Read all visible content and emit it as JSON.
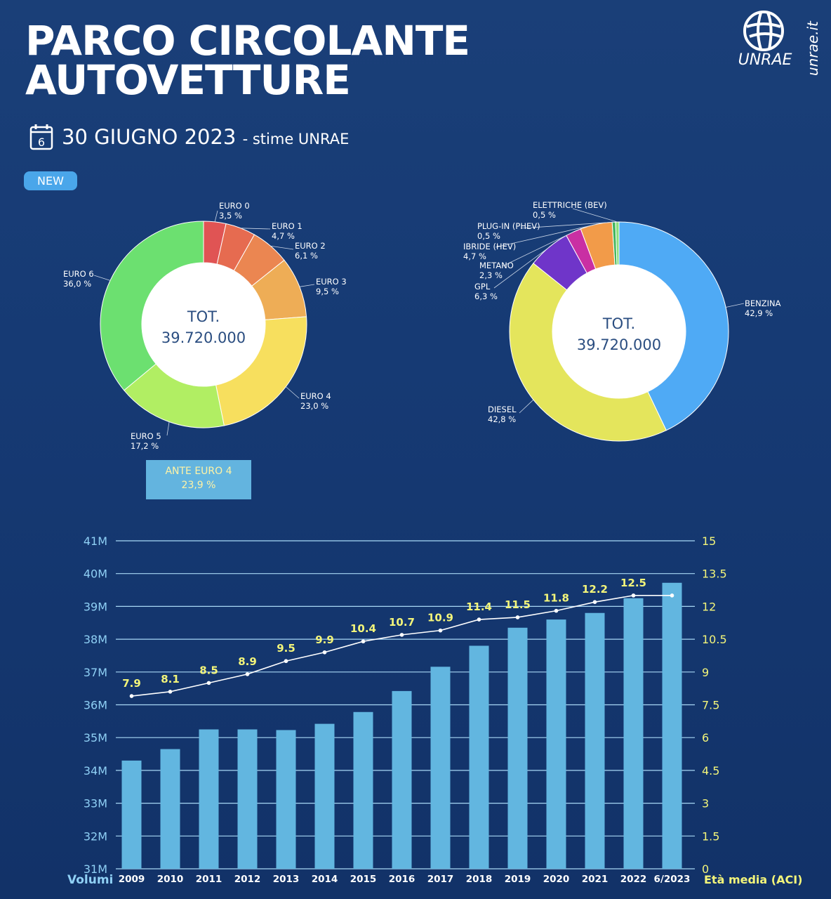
{
  "header": {
    "title_line1": "PARCO CIRCOLANTE",
    "title_line2": "AUTOVETTURE",
    "calendar_icon": "calendar-icon",
    "calendar_number": "6",
    "date": "30 GIUGNO 2023",
    "source": "- stime UNRAE",
    "badge": "NEW"
  },
  "brand": {
    "logo_text": "UNRAE",
    "site": "unrae.it"
  },
  "colors": {
    "background": "#163a74",
    "bar": "#62b6e0",
    "line": "#ffffff",
    "age_labels": "#f3f57a",
    "left_axis": "#8fd0f5",
    "right_axis": "#f3f57a"
  },
  "chart_data": [
    {
      "type": "pie",
      "title": "",
      "center_label_line1": "TOT.",
      "center_label_line2": "39.720.000",
      "slices": [
        {
          "label": "EURO 0",
          "value_text": "3,5 %",
          "value": 3.5,
          "color": "#e05454"
        },
        {
          "label": "EURO 1",
          "value_text": "4,7 %",
          "value": 4.7,
          "color": "#e66b50"
        },
        {
          "label": "EURO 2",
          "value_text": "6,1 %",
          "value": 6.1,
          "color": "#eb8651"
        },
        {
          "label": "EURO 3",
          "value_text": "9,5 %",
          "value": 9.5,
          "color": "#eead56"
        },
        {
          "label": "EURO 4",
          "value_text": "23,0 %",
          "value": 23.0,
          "color": "#f7df5e"
        },
        {
          "label": "EURO 5",
          "value_text": "17,2 %",
          "value": 17.2,
          "color": "#b1ee63"
        },
        {
          "label": "EURO 6",
          "value_text": "36,0 %",
          "value": 36.0,
          "color": "#6ce070"
        }
      ],
      "annotation": {
        "label": "ANTE EURO 4",
        "value_text": "23,9 %"
      }
    },
    {
      "type": "pie",
      "title": "",
      "center_label_line1": "TOT.",
      "center_label_line2": "39.720.000",
      "slices": [
        {
          "label": "BENZINA",
          "value_text": "42,9 %",
          "value": 42.9,
          "color": "#4faaf5"
        },
        {
          "label": "DIESEL",
          "value_text": "42,8 %",
          "value": 42.8,
          "color": "#e4e55c"
        },
        {
          "label": "GPL",
          "value_text": "6,3 %",
          "value": 6.3,
          "color": "#6f35c9"
        },
        {
          "label": "METANO",
          "value_text": "2,3 %",
          "value": 2.3,
          "color": "#c92fa3"
        },
        {
          "label": "IBRIDE (HEV)",
          "value_text": "4,7 %",
          "value": 4.7,
          "color": "#f29b49"
        },
        {
          "label": "PLUG-IN (PHEV)",
          "value_text": "0,5 %",
          "value": 0.5,
          "color": "#43b560"
        },
        {
          "label": "ELETTRICHE (BEV)",
          "value_text": "0,5 %",
          "value": 0.5,
          "color": "#8be07c"
        }
      ]
    },
    {
      "type": "bar",
      "categories": [
        "2009",
        "2010",
        "2011",
        "2012",
        "2013",
        "2014",
        "2015",
        "2016",
        "2017",
        "2018",
        "2019",
        "2020",
        "2021",
        "2022",
        "6/2023"
      ],
      "series": [
        {
          "name": "Volumi",
          "values": [
            34.3,
            34.65,
            35.25,
            35.25,
            35.23,
            35.42,
            35.78,
            36.42,
            37.16,
            37.8,
            38.35,
            38.6,
            38.8,
            39.25,
            39.72
          ]
        },
        {
          "name": "Età media (ACI)",
          "type": "line",
          "values": [
            7.9,
            8.1,
            8.5,
            8.9,
            9.5,
            9.9,
            10.4,
            10.7,
            10.9,
            11.4,
            11.5,
            11.8,
            12.2,
            12.5,
            12.5
          ]
        }
      ],
      "age_data_labels": [
        "7.9",
        "8.1",
        "8.5",
        "8.9",
        "9.5",
        "9.9",
        "10.4",
        "10.7",
        "10.9",
        "11.4",
        "11.5",
        "11.8",
        "12.2",
        "12.5"
      ],
      "y_left_ticks": [
        "31M",
        "32M",
        "33M",
        "34M",
        "35M",
        "36M",
        "37M",
        "38M",
        "39M",
        "40M",
        "41M"
      ],
      "y_right_ticks": [
        "0",
        "1.5",
        "3",
        "4.5",
        "6",
        "7.5",
        "9",
        "10.5",
        "12",
        "13.5",
        "15"
      ],
      "ylim_left": [
        31,
        41
      ],
      "ylim_right": [
        0,
        15
      ],
      "xlabel_left": "Volumi",
      "xlabel_right": "Età media (ACI)",
      "grid": true
    }
  ]
}
